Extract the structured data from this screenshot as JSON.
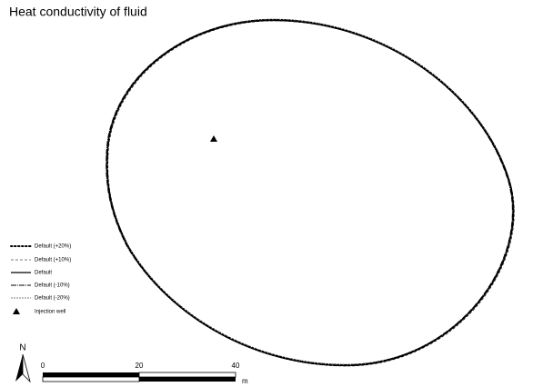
{
  "title": "Heat conductivity of fluid",
  "legend": [
    {
      "label": "Default (+20%)"
    },
    {
      "label": "Default (+10%)"
    },
    {
      "label": "Default"
    },
    {
      "label": "Default (-10%)"
    },
    {
      "label": "Default (-20%)"
    },
    {
      "label": "Injection well"
    }
  ],
  "scale_bar": {
    "labels": [
      0,
      20,
      40
    ],
    "unit": "m"
  },
  "north_arrow": "N"
}
